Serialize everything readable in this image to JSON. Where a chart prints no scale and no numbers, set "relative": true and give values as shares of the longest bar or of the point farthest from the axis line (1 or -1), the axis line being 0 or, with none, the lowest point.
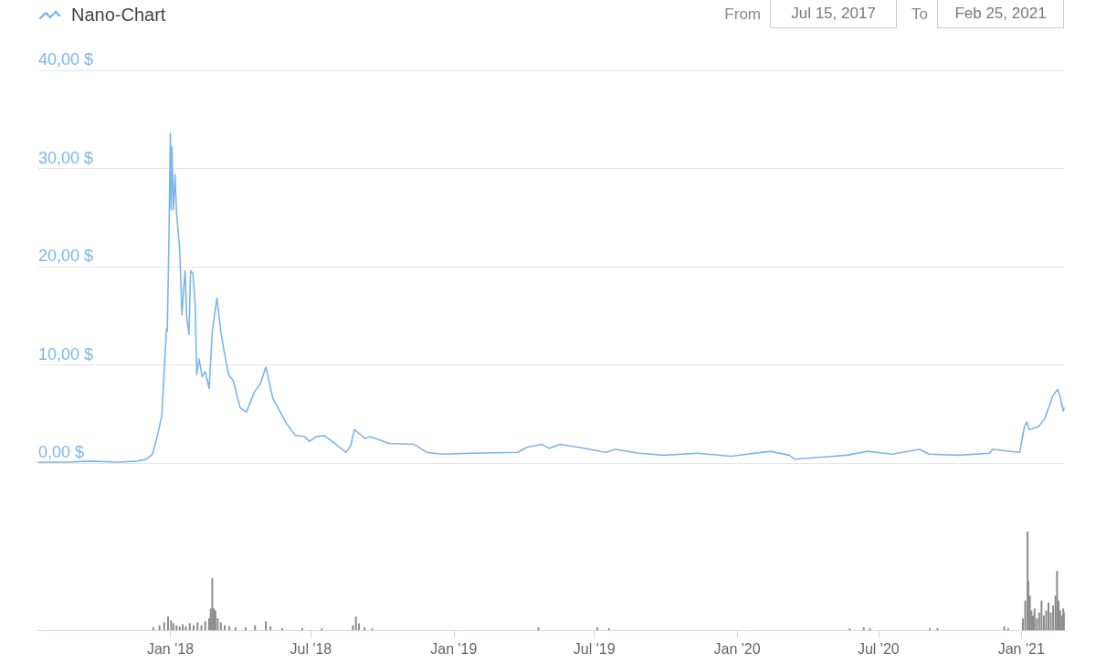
{
  "chart_data": [
    {
      "type": "line",
      "title": "Nano-Chart",
      "annotations": [
        "From",
        "Jul 15, 2017",
        "To",
        "Feb 25, 2021"
      ],
      "x": [
        "2017-07-15",
        "2017-08-20",
        "2017-09-20",
        "2017-10-25",
        "2017-11-19",
        "2017-12-01",
        "2017-12-09",
        "2017-12-15",
        "2017-12-21",
        "2017-12-27",
        "2017-12-28",
        "2017-12-30",
        "2018-01-01",
        "2018-01-02",
        "2018-01-03",
        "2018-01-05",
        "2018-01-07",
        "2018-01-09",
        "2018-01-13",
        "2018-01-16",
        "2018-01-18",
        "2018-01-20",
        "2018-01-22",
        "2018-01-25",
        "2018-01-27",
        "2018-01-30",
        "2018-02-02",
        "2018-02-04",
        "2018-02-07",
        "2018-02-11",
        "2018-02-15",
        "2018-02-20",
        "2018-02-24",
        "2018-03-02",
        "2018-03-07",
        "2018-03-11",
        "2018-03-17",
        "2018-03-23",
        "2018-04-01",
        "2018-04-09",
        "2018-04-19",
        "2018-04-27",
        "2018-05-04",
        "2018-05-13",
        "2018-05-22",
        "2018-05-30",
        "2018-06-11",
        "2018-06-23",
        "2018-06-29",
        "2018-07-08",
        "2018-07-18",
        "2018-08-01",
        "2018-08-15",
        "2018-08-21",
        "2018-08-26",
        "2018-09-09",
        "2018-09-15",
        "2018-10-10",
        "2018-11-11",
        "2018-11-27",
        "2018-12-16",
        "2019-01-24",
        "2019-03-24",
        "2019-04-05",
        "2019-04-25",
        "2019-05-04",
        "2019-05-18",
        "2019-06-11",
        "2019-07-16",
        "2019-07-28",
        "2019-08-28",
        "2019-09-28",
        "2019-11-11",
        "2019-12-24",
        "2020-02-13",
        "2020-03-08",
        "2020-03-15",
        "2020-04-19",
        "2020-05-21",
        "2020-06-17",
        "2020-07-19",
        "2020-08-23",
        "2020-09-04",
        "2020-10-13",
        "2020-11-21",
        "2020-11-25",
        "2020-12-30",
        "2021-01-05",
        "2021-01-08",
        "2021-01-11",
        "2021-01-23",
        "2021-01-31",
        "2021-02-11",
        "2021-02-17",
        "2021-02-20",
        "2021-02-24",
        "2021-02-25"
      ],
      "series": [
        {
          "color": "#7cb5ec",
          "values": [
            0.1,
            0.1,
            0.2,
            0.1,
            0.2,
            0.4,
            0.9,
            2.7,
            4.8,
            13.7,
            13.4,
            22,
            33.6,
            25.8,
            32.2,
            25.8,
            29.4,
            25.5,
            21.8,
            15.1,
            17.7,
            19.6,
            14.9,
            13.1,
            19.6,
            19.3,
            16.2,
            9.0,
            10.6,
            8.8,
            9.3,
            7.6,
            13.4,
            16.8,
            13.4,
            11.5,
            9.0,
            8.4,
            5.6,
            5.2,
            7.2,
            8.1,
            9.8,
            6.6,
            5.3,
            4.1,
            2.8,
            2.7,
            2.2,
            2.7,
            2.8,
            2.0,
            1.1,
            1.7,
            3.4,
            2.5,
            2.7,
            2.0,
            1.9,
            1.1,
            0.9,
            1.0,
            1.1,
            1.6,
            1.9,
            1.5,
            1.9,
            1.6,
            1.1,
            1.4,
            1.0,
            0.8,
            1.0,
            0.7,
            1.2,
            0.8,
            0.4,
            0.6,
            0.8,
            1.2,
            0.9,
            1.4,
            0.9,
            0.8,
            1.0,
            1.4,
            1.1,
            3.7,
            4.2,
            3.4,
            3.7,
            4.5,
            6.9,
            7.5,
            6.7,
            5.3,
            5.6
          ]
        }
      ],
      "xlim": [
        "2017-07-15",
        "2021-02-25"
      ],
      "ylim": [
        0,
        40
      ],
      "yticks": [
        {
          "value": 0,
          "label": "0,00 $"
        },
        {
          "value": 10,
          "label": "10,00 $"
        },
        {
          "value": 20,
          "label": "20,00 $"
        },
        {
          "value": 30,
          "label": "30,00 $"
        },
        {
          "value": 40,
          "label": "40,00 $"
        }
      ],
      "grid": "y",
      "tick_labels": "y"
    },
    {
      "type": "bar",
      "relative": true,
      "x": [
        "2017-12-10",
        "2017-12-18",
        "2017-12-24",
        "2017-12-29",
        "2018-01-02",
        "2018-01-05",
        "2018-01-09",
        "2018-01-13",
        "2018-01-17",
        "2018-01-21",
        "2018-01-26",
        "2018-01-31",
        "2018-02-05",
        "2018-02-10",
        "2018-02-15",
        "2018-02-20",
        "2018-02-22",
        "2018-02-24",
        "2018-02-26",
        "2018-02-28",
        "2018-03-03",
        "2018-03-07",
        "2018-03-12",
        "2018-03-18",
        "2018-03-26",
        "2018-04-08",
        "2018-04-20",
        "2018-05-04",
        "2018-05-10",
        "2018-05-25",
        "2018-06-20",
        "2018-07-15",
        "2018-08-24",
        "2018-08-28",
        "2018-09-01",
        "2018-09-08",
        "2018-09-18",
        "2019-04-20",
        "2019-07-05",
        "2019-07-20",
        "2020-05-25",
        "2020-06-12",
        "2020-06-20",
        "2020-09-05",
        "2020-09-15",
        "2020-12-10",
        "2020-12-15",
        "2021-01-03",
        "2021-01-06",
        "2021-01-09",
        "2021-01-10",
        "2021-01-12",
        "2021-01-14",
        "2021-01-16",
        "2021-01-18",
        "2021-01-21",
        "2021-01-24",
        "2021-01-27",
        "2021-01-30",
        "2021-02-02",
        "2021-02-05",
        "2021-02-08",
        "2021-02-11",
        "2021-02-14",
        "2021-02-16",
        "2021-02-18",
        "2021-02-20",
        "2021-02-22",
        "2021-02-24",
        "2021-02-25"
      ],
      "series": [
        {
          "color": "#8c8c8c",
          "values": [
            0.03,
            0.05,
            0.08,
            0.14,
            0.1,
            0.07,
            0.05,
            0.04,
            0.06,
            0.04,
            0.07,
            0.05,
            0.08,
            0.05,
            0.09,
            0.12,
            0.22,
            0.53,
            0.22,
            0.2,
            0.12,
            0.08,
            0.05,
            0.04,
            0.03,
            0.03,
            0.05,
            0.09,
            0.04,
            0.02,
            0.02,
            0.02,
            0.05,
            0.14,
            0.07,
            0.03,
            0.02,
            0.03,
            0.03,
            0.02,
            0.02,
            0.03,
            0.02,
            0.02,
            0.02,
            0.04,
            0.02,
            0.12,
            0.3,
            1.0,
            0.5,
            0.35,
            0.2,
            0.15,
            0.22,
            0.12,
            0.18,
            0.3,
            0.15,
            0.2,
            0.28,
            0.18,
            0.25,
            0.35,
            0.6,
            0.3,
            0.2,
            0.15,
            0.22,
            0.18
          ]
        }
      ],
      "xlim": [
        "2017-07-15",
        "2021-02-25"
      ],
      "xticks": [
        {
          "value": "2018-01-01",
          "label": "Jan '18"
        },
        {
          "value": "2018-07-01",
          "label": "Jul '18"
        },
        {
          "value": "2019-01-01",
          "label": "Jan '19"
        },
        {
          "value": "2019-07-01",
          "label": "Jul '19"
        },
        {
          "value": "2020-01-01",
          "label": "Jan '20"
        },
        {
          "value": "2020-07-01",
          "label": "Jul '20"
        },
        {
          "value": "2021-01-01",
          "label": "Jan '21"
        }
      ],
      "tick_labels": "x"
    }
  ]
}
